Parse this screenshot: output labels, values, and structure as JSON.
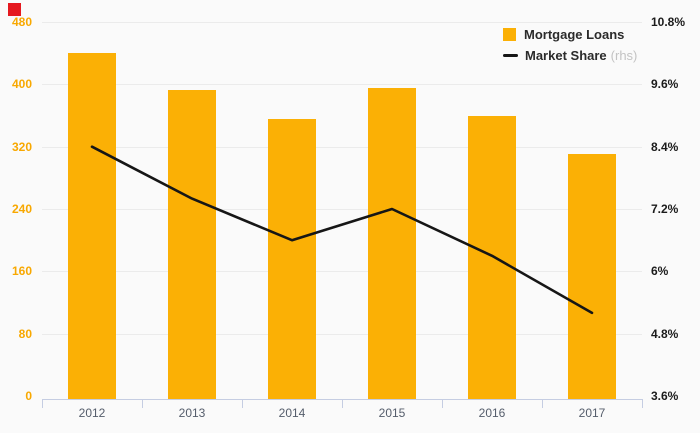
{
  "decorations": {
    "red_square_color": "#e5191f"
  },
  "palette": {
    "background": "#fafafa",
    "gridline": "#ebebeb",
    "axis_line": "#c5cde2",
    "x_label_color": "#555d6b",
    "legend_text_color": "#2b2b2b",
    "legend_rhs_color": "#c3c3c3"
  },
  "legend": {
    "items": [
      {
        "label": "Mortgage Loans",
        "suffix": ""
      },
      {
        "label": "Market Share",
        "suffix": "(rhs)"
      }
    ]
  },
  "chart_data": {
    "type": "combo-bar-line",
    "title": "",
    "categories": [
      "2012",
      "2013",
      "2014",
      "2015",
      "2016",
      "2017"
    ],
    "series": [
      {
        "name": "Mortgage Loans",
        "type": "bar",
        "axis": "left",
        "color": "#fbb005",
        "values": [
          440,
          393,
          355,
          395,
          360,
          310
        ]
      },
      {
        "name": "Market Share (rhs)",
        "type": "line",
        "axis": "right",
        "color": "#161616",
        "values": [
          8.4,
          7.4,
          6.6,
          7.2,
          6.3,
          5.2
        ]
      }
    ],
    "left_axis": {
      "min": 0,
      "max": 480,
      "step": 80,
      "ticks": [
        "0",
        "80",
        "160",
        "240",
        "320",
        "400",
        "480"
      ],
      "color": "#f8a800"
    },
    "right_axis": {
      "min": 3.6,
      "max": 10.8,
      "step": 1.2,
      "ticks": [
        "3.6%",
        "4.8%",
        "6%",
        "7.2%",
        "8.4%",
        "9.6%",
        "10.8%"
      ],
      "color": "#1b1b1b"
    },
    "grid": true,
    "legend_position": "top-right"
  }
}
